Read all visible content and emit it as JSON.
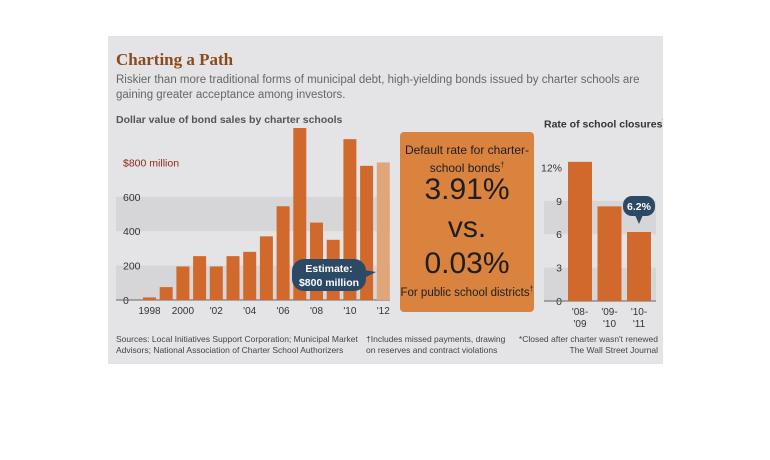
{
  "header": {
    "title": "Charting a Path",
    "subtitle": "Riskier than more traditional forms of municipal debt, high-yielding bonds issued by charter schools are gaining greater acceptance among investors."
  },
  "default_box": {
    "label": "Default rate for charter-school bonds",
    "label_mark": "†",
    "charter_rate": "3.91%",
    "vs": "vs.",
    "public_rate": "0.03%",
    "public_label": "For public school districts",
    "public_mark": "†"
  },
  "footer": {
    "sources": "Sources: Local Initiatives Support Corporation; Municipal Market Advisors; National Association of Charter School Authorizers",
    "note1": "†Includes missed payments, drawing on reserves and contract violations",
    "note2": "*Closed after charter wasn't renewed",
    "credit": "The Wall Street Journal"
  },
  "colors": {
    "bar": "#d2692c",
    "bar_estimate": "#e1a57a",
    "callout": "#2c4a66",
    "panel": "#e4e4e6"
  },
  "chart_data": [
    {
      "type": "bar",
      "title": "Dollar value of bond sales by charter schools",
      "unit": "million",
      "categories": [
        "1998",
        "1999",
        "2000",
        "2001",
        "2002",
        "2003",
        "2004",
        "2005",
        "2006",
        "2007",
        "2008",
        "2009",
        "2010",
        "2011",
        "2012"
      ],
      "tick_labels": [
        "1998",
        "",
        "2000",
        "",
        "'02",
        "",
        "'04",
        "",
        "'06",
        "",
        "'08",
        "",
        "'10",
        "",
        "'12"
      ],
      "values": [
        15,
        75,
        195,
        255,
        195,
        255,
        280,
        370,
        545,
        1000,
        450,
        350,
        935,
        780,
        800
      ],
      "estimate_index": 14,
      "ylim": [
        0,
        1000
      ],
      "yticks": [
        0,
        200,
        400,
        600,
        800
      ],
      "ytick_labels": [
        "0",
        "200",
        "400",
        "600",
        "$800 million"
      ],
      "annotation": "Estimate: $800 million"
    },
    {
      "type": "bar",
      "title": "Rate of school closures",
      "title_mark": "*",
      "categories": [
        "'08-'09",
        "'09-'10",
        "'10-'11"
      ],
      "tick_top": [
        "'08-",
        "'09-",
        "'10-"
      ],
      "tick_bottom": [
        "'09",
        "'10",
        "'11"
      ],
      "values": [
        12.5,
        8.5,
        6.2
      ],
      "ylim": [
        0,
        15
      ],
      "yticks": [
        0,
        3,
        6,
        9,
        12
      ],
      "ytick_labels": [
        "0",
        "3",
        "6",
        "9",
        "12%"
      ],
      "annotation": "6.2%"
    }
  ]
}
